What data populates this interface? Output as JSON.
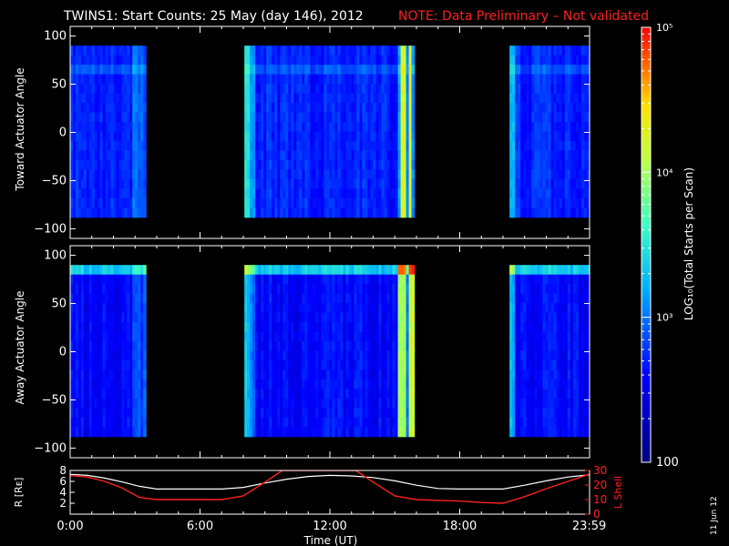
{
  "header": {
    "title": "TWINS1: Start Counts: 25 May (day 146), 2012",
    "note": "NOTE: Data Preliminary – Not validated",
    "note_color": "#ff2020"
  },
  "side_date": "11 Jun 12",
  "colorbar": {
    "label": "LOG₁₀(Total Starts per Scan)",
    "tick_labels": [
      "100",
      "10³",
      "10⁴",
      "10⁵"
    ],
    "log_range": [
      2,
      5
    ]
  },
  "chart_data": [
    {
      "type": "heatmap",
      "panel": "toward",
      "ylabel": "Toward Actuator Angle",
      "xlim": [
        0,
        24
      ],
      "ylim": [
        -110,
        110
      ],
      "y_tick_labels": [
        "100",
        "50",
        "0",
        "−50",
        "−100"
      ],
      "angle_range": [
        -88,
        90
      ],
      "data_intervals_hours": [
        [
          0.0,
          3.5
        ],
        [
          8.05,
          15.9
        ],
        [
          20.3,
          24.0
        ]
      ],
      "typical_log_counts": 2.7
    },
    {
      "type": "heatmap",
      "panel": "away",
      "ylabel": "Away Actuator Angle",
      "xlim": [
        0,
        24
      ],
      "ylim": [
        -110,
        110
      ],
      "y_tick_labels": [
        "100",
        "50",
        "0",
        "−50",
        "−100"
      ],
      "angle_range": [
        -88,
        90
      ],
      "data_intervals_hours": [
        [
          0.0,
          3.5
        ],
        [
          8.05,
          15.9
        ],
        [
          20.3,
          24.0
        ]
      ],
      "typical_log_counts": 2.6
    },
    {
      "type": "line",
      "panel": "orbit",
      "ylabel_left": "R [Rᴇ]",
      "ylabel_right": "L Shell",
      "xlabel": "Time (UT)",
      "x_tick_labels": [
        "0:00",
        "6:00",
        "12:00",
        "18:00",
        "23:59"
      ],
      "x_ticks_hours": [
        0,
        6,
        12,
        18,
        23.983
      ],
      "y_left_ticks": [
        "8",
        "6",
        "4",
        "2"
      ],
      "y_right_ticks": [
        "30",
        "20",
        "10",
        "0"
      ],
      "ylim_left": [
        0,
        8
      ],
      "ylim_right": [
        0,
        30
      ],
      "series": [
        {
          "name": "R [Rᴇ]",
          "color": "#ffffff",
          "x": [
            0,
            0.8,
            1.6,
            2.4,
            3.2,
            4.0,
            5.0,
            6.0,
            7.0,
            8.0,
            9.0,
            10.0,
            11.0,
            12.0,
            13.0,
            14.0,
            15.0,
            16.0,
            17.0,
            18.0,
            19.0,
            20.0,
            21.0,
            22.0,
            23.0,
            24.0
          ],
          "y": [
            7.3,
            7.1,
            6.6,
            5.9,
            5.1,
            4.6,
            4.6,
            4.6,
            4.6,
            4.9,
            5.7,
            6.4,
            6.9,
            7.1,
            7.0,
            6.7,
            6.1,
            5.3,
            4.7,
            4.6,
            4.6,
            4.6,
            5.3,
            6.1,
            6.8,
            7.2
          ]
        },
        {
          "name": "L Shell",
          "color": "#ff2020",
          "x": [
            0,
            0.8,
            1.6,
            2.4,
            3.2,
            4.0,
            5.0,
            6.0,
            7.0,
            8.0,
            9.0,
            9.8,
            13.2,
            14.0,
            15.0,
            16.0,
            17.0,
            18.0,
            19.0,
            20.0,
            21.0,
            22.0,
            23.0,
            24.0
          ],
          "y": [
            26.5,
            25.5,
            22.5,
            18.0,
            11.5,
            10.0,
            10.0,
            10.0,
            10.0,
            12.5,
            22.0,
            30.0,
            30.0,
            22.0,
            12.5,
            10.0,
            9.5,
            9.0,
            8.0,
            7.5,
            12.0,
            17.5,
            22.5,
            27.5
          ]
        }
      ]
    }
  ]
}
